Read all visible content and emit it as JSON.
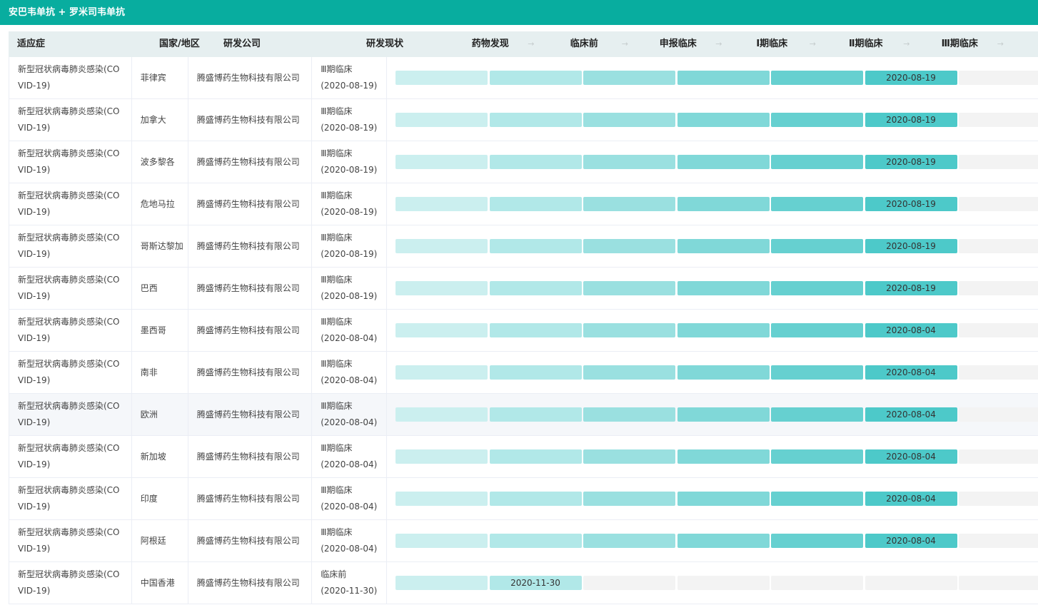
{
  "title": "安巴韦单抗 + 罗米司韦单抗",
  "columns": {
    "indication": "适应症",
    "country": "国家/地区",
    "company": "研发公司",
    "status": "研发现状"
  },
  "stages": [
    "药物发现",
    "临床前",
    "申报临床",
    "Ⅰ期临床",
    "Ⅱ期临床",
    "Ⅲ期临床"
  ],
  "stage_colors": [
    "#cbefef",
    "#b1e8e8",
    "#9ae0e0",
    "#80d8d8",
    "#66d0d0",
    "#4dc9c9"
  ],
  "empty_color": "#f3f3f3",
  "accent": "#08ad9f",
  "rows": [
    {
      "indication": "新型冠状病毒肺炎感染(COVID-19)",
      "country": "菲律宾",
      "company": "腾盛博药生物科技有限公司",
      "status": "Ⅲ期临床",
      "status_date": "(2020-08-19)",
      "stages_reached": 6,
      "date": "2020-08-19"
    },
    {
      "indication": "新型冠状病毒肺炎感染(COVID-19)",
      "country": "加拿大",
      "company": "腾盛博药生物科技有限公司",
      "status": "Ⅲ期临床",
      "status_date": "(2020-08-19)",
      "stages_reached": 6,
      "date": "2020-08-19"
    },
    {
      "indication": "新型冠状病毒肺炎感染(COVID-19)",
      "country": "波多黎各",
      "company": "腾盛博药生物科技有限公司",
      "status": "Ⅲ期临床",
      "status_date": "(2020-08-19)",
      "stages_reached": 6,
      "date": "2020-08-19"
    },
    {
      "indication": "新型冠状病毒肺炎感染(COVID-19)",
      "country": "危地马拉",
      "company": "腾盛博药生物科技有限公司",
      "status": "Ⅲ期临床",
      "status_date": "(2020-08-19)",
      "stages_reached": 6,
      "date": "2020-08-19"
    },
    {
      "indication": "新型冠状病毒肺炎感染(COVID-19)",
      "country": "哥斯达黎加",
      "company": "腾盛博药生物科技有限公司",
      "status": "Ⅲ期临床",
      "status_date": "(2020-08-19)",
      "stages_reached": 6,
      "date": "2020-08-19"
    },
    {
      "indication": "新型冠状病毒肺炎感染(COVID-19)",
      "country": "巴西",
      "company": "腾盛博药生物科技有限公司",
      "status": "Ⅲ期临床",
      "status_date": "(2020-08-19)",
      "stages_reached": 6,
      "date": "2020-08-19"
    },
    {
      "indication": "新型冠状病毒肺炎感染(COVID-19)",
      "country": "墨西哥",
      "company": "腾盛博药生物科技有限公司",
      "status": "Ⅲ期临床",
      "status_date": "(2020-08-04)",
      "stages_reached": 6,
      "date": "2020-08-04"
    },
    {
      "indication": "新型冠状病毒肺炎感染(COVID-19)",
      "country": "南非",
      "company": "腾盛博药生物科技有限公司",
      "status": "Ⅲ期临床",
      "status_date": "(2020-08-04)",
      "stages_reached": 6,
      "date": "2020-08-04"
    },
    {
      "indication": "新型冠状病毒肺炎感染(COVID-19)",
      "country": "欧洲",
      "company": "腾盛博药生物科技有限公司",
      "status": "Ⅲ期临床",
      "status_date": "(2020-08-04)",
      "stages_reached": 6,
      "date": "2020-08-04",
      "hover": true
    },
    {
      "indication": "新型冠状病毒肺炎感染(COVID-19)",
      "country": "新加坡",
      "company": "腾盛博药生物科技有限公司",
      "status": "Ⅲ期临床",
      "status_date": "(2020-08-04)",
      "stages_reached": 6,
      "date": "2020-08-04"
    },
    {
      "indication": "新型冠状病毒肺炎感染(COVID-19)",
      "country": "印度",
      "company": "腾盛博药生物科技有限公司",
      "status": "Ⅲ期临床",
      "status_date": "(2020-08-04)",
      "stages_reached": 6,
      "date": "2020-08-04"
    },
    {
      "indication": "新型冠状病毒肺炎感染(COVID-19)",
      "country": "阿根廷",
      "company": "腾盛博药生物科技有限公司",
      "status": "Ⅲ期临床",
      "status_date": "(2020-08-04)",
      "stages_reached": 6,
      "date": "2020-08-04"
    },
    {
      "indication": "新型冠状病毒肺炎感染(COVID-19)",
      "country": "中国香港",
      "company": "腾盛博药生物科技有限公司",
      "status": "临床前",
      "status_date": "(2020-11-30)",
      "stages_reached": 2,
      "date": "2020-11-30"
    }
  ]
}
